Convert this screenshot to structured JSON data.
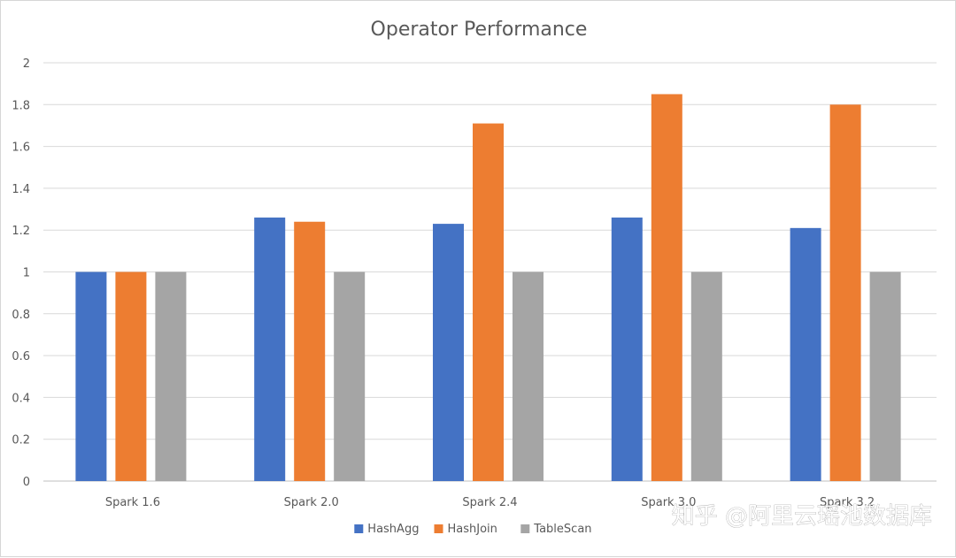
{
  "chart_data": {
    "type": "bar",
    "title": "Operator Performance",
    "xlabel": "",
    "ylabel": "",
    "categories": [
      "Spark 1.6",
      "Spark 2.0",
      "Spark 2.4",
      "Spark 3.0",
      "Spark 3.2"
    ],
    "series": [
      {
        "name": "HashAgg",
        "color": "#4472C4",
        "values": [
          1.0,
          1.26,
          1.23,
          1.26,
          1.21
        ]
      },
      {
        "name": "HashJoin",
        "color": "#ED7D31",
        "values": [
          1.0,
          1.24,
          1.71,
          1.85,
          1.8
        ]
      },
      {
        "name": "TableScan",
        "color": "#A5A5A5",
        "values": [
          1.0,
          1.0,
          1.0,
          1.0,
          1.0
        ]
      }
    ],
    "ylim": [
      0,
      2
    ],
    "yticks": [
      "0",
      "0.2",
      "0.4",
      "0.6",
      "0.8",
      "1",
      "1.2",
      "1.4",
      "1.6",
      "1.8",
      "2"
    ],
    "grid": true,
    "legend_position": "bottom"
  },
  "watermark": "知乎 @阿里云瑶池数据库",
  "colors": {
    "gridline": "#d9d9d9",
    "axis": "#bfbfbf",
    "text": "#595959"
  }
}
